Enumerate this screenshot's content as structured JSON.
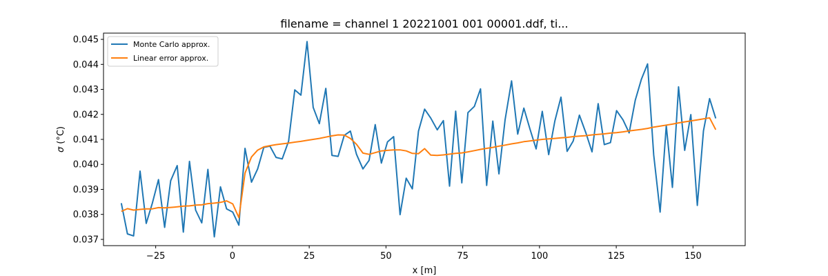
{
  "chart_data": {
    "type": "line",
    "title": "filename = channel 1 20221001 001 00001.ddf, ti...",
    "xlabel": "x [m]",
    "ylabel_symbol": "σ",
    "ylabel_unit": "(°C)",
    "xlim": [
      -42,
      167
    ],
    "ylim": [
      0.03675,
      0.04525
    ],
    "xticks": [
      -25,
      0,
      25,
      50,
      75,
      100,
      125,
      150
    ],
    "xtick_labels": [
      "−25",
      "0",
      "25",
      "50",
      "75",
      "100",
      "125",
      "150"
    ],
    "yticks": [
      0.037,
      0.038,
      0.039,
      0.04,
      0.041,
      0.042,
      0.043,
      0.044,
      0.045
    ],
    "ytick_labels": [
      "0.037",
      "0.038",
      "0.039",
      "0.040",
      "0.041",
      "0.042",
      "0.043",
      "0.044",
      "0.045"
    ],
    "grid": false,
    "legend_position": "upper-left",
    "series": [
      {
        "name": "Monte Carlo approx.",
        "color": "#1f77b4",
        "x": [
          -36.2,
          -34.2,
          -32.2,
          -30.1,
          -28.1,
          -26.1,
          -24.1,
          -22.1,
          -20.1,
          -18.0,
          -16.0,
          -14.0,
          -12.0,
          -10.0,
          -8.0,
          -5.9,
          -3.9,
          -1.9,
          0.1,
          2.1,
          4.1,
          6.2,
          8.2,
          10.2,
          12.2,
          14.2,
          16.2,
          18.3,
          20.3,
          22.3,
          24.3,
          26.3,
          28.3,
          30.4,
          32.4,
          34.4,
          36.4,
          38.4,
          40.4,
          42.5,
          44.5,
          46.5,
          48.5,
          50.5,
          52.5,
          54.6,
          56.6,
          58.6,
          60.6,
          62.6,
          64.6,
          66.7,
          68.7,
          70.7,
          72.7,
          74.7,
          76.7,
          78.8,
          80.8,
          82.8,
          84.8,
          86.8,
          88.8,
          90.9,
          92.9,
          94.9,
          96.9,
          98.9,
          100.9,
          103.0,
          105.0,
          107.0,
          109.0,
          111.0,
          113.0,
          115.1,
          117.1,
          119.1,
          121.1,
          123.1,
          125.1,
          127.2,
          129.2,
          131.2,
          133.2,
          135.2,
          137.2,
          139.3,
          141.3,
          143.3,
          145.3,
          147.3,
          149.3,
          151.4,
          153.4,
          155.4,
          157.4
        ],
        "y": [
          0.03845,
          0.03722,
          0.03714,
          0.03973,
          0.03764,
          0.03845,
          0.03939,
          0.03748,
          0.03935,
          0.03995,
          0.03729,
          0.04012,
          0.03817,
          0.03766,
          0.0398,
          0.0371,
          0.0391,
          0.03822,
          0.03809,
          0.03757,
          0.04064,
          0.03929,
          0.03982,
          0.04068,
          0.04073,
          0.04028,
          0.04022,
          0.04093,
          0.04298,
          0.04277,
          0.04491,
          0.04228,
          0.04163,
          0.04304,
          0.04036,
          0.04032,
          0.04116,
          0.04133,
          0.0404,
          0.03982,
          0.04016,
          0.04159,
          0.04005,
          0.0409,
          0.04111,
          0.03799,
          0.03945,
          0.03902,
          0.04133,
          0.04221,
          0.04185,
          0.04138,
          0.04175,
          0.03913,
          0.04213,
          0.03926,
          0.04207,
          0.04232,
          0.04302,
          0.03916,
          0.04173,
          0.03962,
          0.04178,
          0.04334,
          0.04121,
          0.04225,
          0.04141,
          0.04062,
          0.04212,
          0.04039,
          0.04173,
          0.04269,
          0.04052,
          0.04094,
          0.04197,
          0.04126,
          0.0405,
          0.04243,
          0.04079,
          0.04087,
          0.04215,
          0.04178,
          0.04126,
          0.04257,
          0.04341,
          0.04402,
          0.04038,
          0.03809,
          0.04155,
          0.03908,
          0.0431,
          0.04056,
          0.04199,
          0.03836,
          0.04134,
          0.04263,
          0.04184
        ]
      },
      {
        "name": "Linear error approx.",
        "color": "#ff7f0e",
        "x": [
          -36.2,
          -34.2,
          -32.2,
          -30.1,
          -28.1,
          -26.1,
          -24.1,
          -22.1,
          -20.1,
          -18.0,
          -16.0,
          -14.0,
          -12.0,
          -10.0,
          -8.0,
          -5.9,
          -3.9,
          -1.9,
          0.1,
          2.1,
          4.1,
          6.2,
          8.2,
          10.2,
          12.2,
          14.2,
          16.2,
          18.3,
          20.3,
          22.3,
          24.3,
          26.3,
          28.3,
          30.4,
          32.4,
          34.4,
          36.4,
          38.4,
          40.4,
          42.5,
          44.5,
          46.5,
          48.5,
          50.5,
          52.5,
          54.6,
          56.6,
          58.6,
          60.6,
          62.6,
          64.6,
          66.7,
          68.7,
          70.7,
          72.7,
          74.7,
          76.7,
          78.8,
          80.8,
          82.8,
          84.8,
          86.8,
          88.8,
          90.9,
          92.9,
          94.9,
          96.9,
          98.9,
          100.9,
          103.0,
          105.0,
          107.0,
          109.0,
          111.0,
          113.0,
          115.1,
          117.1,
          119.1,
          121.1,
          123.1,
          125.1,
          127.2,
          129.2,
          131.2,
          133.2,
          135.2,
          137.2,
          139.3,
          141.3,
          143.3,
          145.3,
          147.3,
          149.3,
          151.4,
          153.4,
          155.4,
          157.4
        ],
        "y": [
          0.03812,
          0.03823,
          0.03817,
          0.0382,
          0.03822,
          0.03822,
          0.03827,
          0.03826,
          0.03828,
          0.0383,
          0.03833,
          0.03834,
          0.03837,
          0.03838,
          0.03843,
          0.03845,
          0.03848,
          0.03854,
          0.03842,
          0.03787,
          0.03965,
          0.0403,
          0.04057,
          0.0407,
          0.04075,
          0.04079,
          0.04082,
          0.04085,
          0.04089,
          0.04092,
          0.04096,
          0.041,
          0.04104,
          0.04109,
          0.04114,
          0.04118,
          0.04117,
          0.04104,
          0.0408,
          0.04045,
          0.0404,
          0.04047,
          0.04054,
          0.04056,
          0.04058,
          0.04058,
          0.04054,
          0.04044,
          0.04043,
          0.04063,
          0.04037,
          0.04036,
          0.04038,
          0.04041,
          0.04044,
          0.04046,
          0.0405,
          0.04055,
          0.0406,
          0.04064,
          0.04068,
          0.04073,
          0.04077,
          0.04082,
          0.04086,
          0.04091,
          0.04094,
          0.04097,
          0.041,
          0.04102,
          0.04104,
          0.04106,
          0.04108,
          0.04111,
          0.04113,
          0.04115,
          0.04118,
          0.0412,
          0.04122,
          0.04125,
          0.04127,
          0.0413,
          0.04134,
          0.04137,
          0.0414,
          0.04144,
          0.04149,
          0.04153,
          0.04157,
          0.04161,
          0.04166,
          0.0417,
          0.04174,
          0.04178,
          0.04182,
          0.04186,
          0.04139
        ]
      }
    ]
  }
}
